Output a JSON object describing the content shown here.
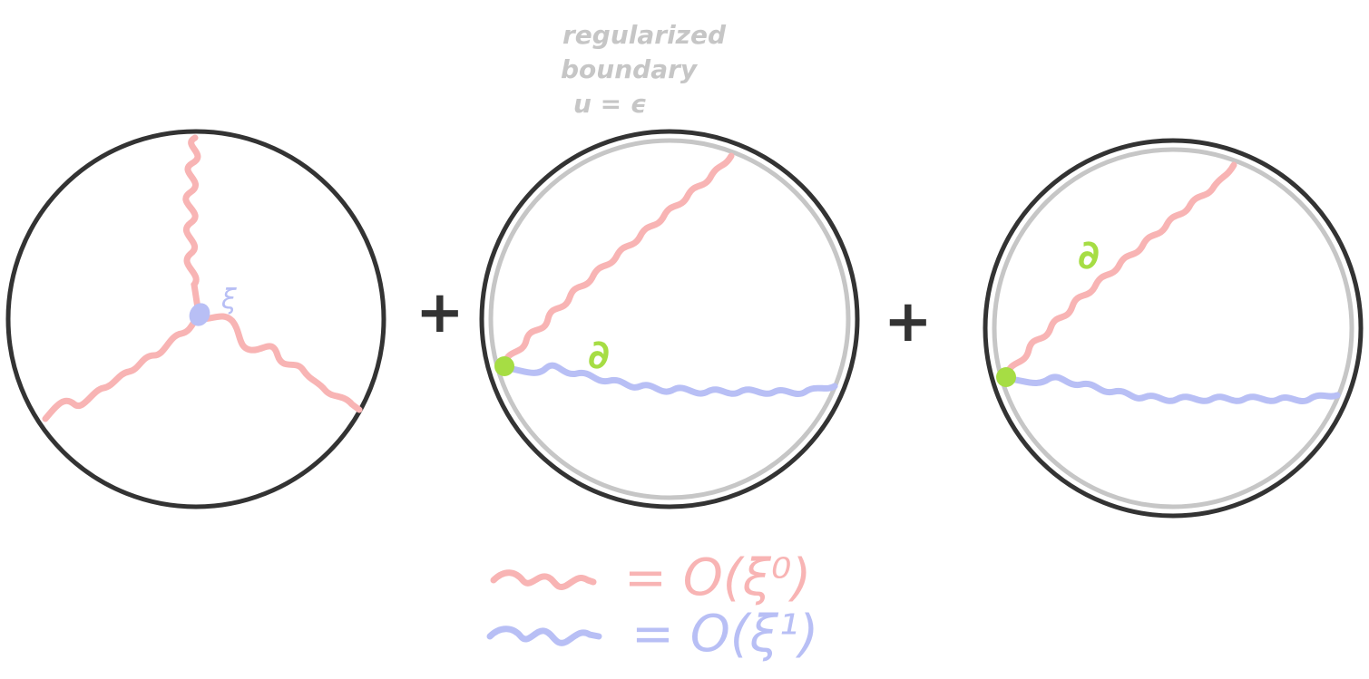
{
  "annotation": {
    "lines": [
      "regularized",
      "boundary",
      "u = ϵ"
    ]
  },
  "operators": [
    "+",
    "+"
  ],
  "vertex_label": "ξ",
  "legend": {
    "red_text": "= O(ξ⁰)",
    "blue_text": "= O(ξ¹)"
  },
  "colors": {
    "circle": "#333333",
    "regularized_boundary": "#c6c6c6",
    "red_propagator": "#f8b4b4",
    "blue_propagator": "#b8bff5",
    "green_insertion": "#a6dd44",
    "annotation_text": "#c6c6c6"
  },
  "green_marks": [
    "∂",
    "∂"
  ],
  "icons": [
    "wavy-propagator-red",
    "wavy-propagator-blue",
    "insertion-dot-green"
  ]
}
